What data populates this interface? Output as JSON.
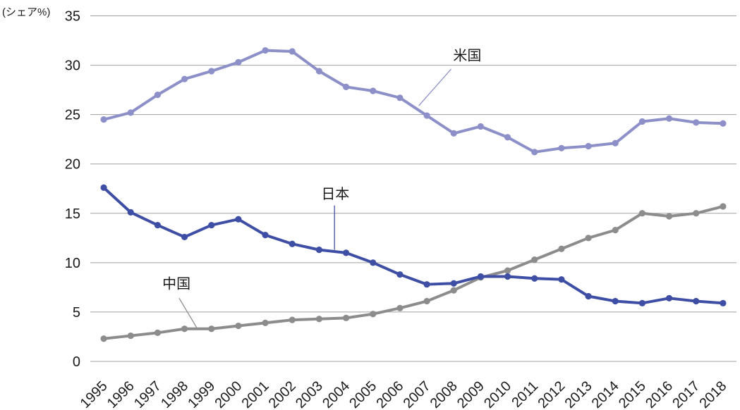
{
  "chart_data": {
    "type": "line",
    "title": "",
    "xlabel": "",
    "ylabel": "(シェア%)",
    "ylim": [
      0,
      35
    ],
    "ytick_step": 5,
    "yticks": [
      "0",
      "5",
      "10",
      "15",
      "20",
      "25",
      "30",
      "35"
    ],
    "grid": "horizontal",
    "legend": "inline-annotations",
    "categories": [
      "1995",
      "1996",
      "1997",
      "1998",
      "1999",
      "2000",
      "2001",
      "2002",
      "2003",
      "2004",
      "2005",
      "2006",
      "2007",
      "2008",
      "2009",
      "2010",
      "2011",
      "2012",
      "2013",
      "2014",
      "2015",
      "2016",
      "2017",
      "2018"
    ],
    "series": [
      {
        "id": "us",
        "name": "米国",
        "color": "#8d90c8",
        "values": [
          24.5,
          25.2,
          27.0,
          28.6,
          29.4,
          30.3,
          31.5,
          31.4,
          29.4,
          27.8,
          27.4,
          26.7,
          24.9,
          23.1,
          23.8,
          22.7,
          21.2,
          21.6,
          21.8,
          22.1,
          24.3,
          24.6,
          24.2,
          24.1
        ]
      },
      {
        "id": "japan",
        "name": "日本",
        "color": "#3f4ea5",
        "values": [
          17.6,
          15.1,
          13.8,
          12.6,
          13.8,
          14.4,
          12.8,
          11.9,
          11.3,
          11.0,
          10.0,
          8.8,
          7.8,
          7.9,
          8.6,
          8.6,
          8.4,
          8.3,
          6.6,
          6.1,
          5.9,
          6.4,
          6.1,
          5.9
        ]
      },
      {
        "id": "china",
        "name": "中国",
        "color": "#8c8c8c",
        "values": [
          2.3,
          2.6,
          2.9,
          3.3,
          3.3,
          3.6,
          3.9,
          4.2,
          4.3,
          4.4,
          4.8,
          5.4,
          6.1,
          7.2,
          8.5,
          9.2,
          10.3,
          11.4,
          12.5,
          13.3,
          15.0,
          14.7,
          15.0,
          15.7
        ]
      }
    ],
    "annotations": [
      {
        "series_id": "us",
        "text": "米国",
        "label_x": 2008.5,
        "label_y": 31.0,
        "leader": [
          [
            2007.9,
            29.6
          ],
          [
            2006.7,
            25.9
          ]
        ]
      },
      {
        "series_id": "japan",
        "text": "日本",
        "label_x": 2003.6,
        "label_y": 17.0,
        "leader": [
          [
            2003.57,
            15.8
          ],
          [
            2003.57,
            11.3
          ]
        ]
      },
      {
        "series_id": "china",
        "text": "中国",
        "label_x": 1997.7,
        "label_y": 7.9,
        "leader": [
          [
            1997.8,
            6.4
          ],
          [
            1998.5,
            3.2
          ]
        ]
      }
    ]
  },
  "colors": {
    "background": "#ffffff",
    "grid": "#a0a0a0",
    "text": "#1a1a1a"
  }
}
